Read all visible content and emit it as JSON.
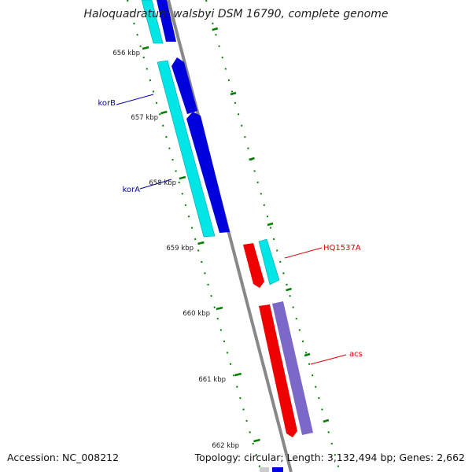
{
  "title": "Haloquadratum walsbyi DSM 16790, complete genome",
  "footer": {
    "accession": "Accession: NC_008212",
    "summary": "Topology: circular; Length: 3,132,494 bp; Genes: 2,662"
  },
  "scale": {
    "ticks": [
      {
        "label": "656 kbp",
        "kbp": 656
      },
      {
        "label": "657 kbp",
        "kbp": 657
      },
      {
        "label": "658 kbp",
        "kbp": 658
      },
      {
        "label": "659 kbp",
        "kbp": 659
      },
      {
        "label": "660 kbp",
        "kbp": 660
      },
      {
        "label": "661 kbp",
        "kbp": 661
      },
      {
        "label": "662 kbp",
        "kbp": 662
      }
    ]
  },
  "genes": [
    {
      "label": "korB",
      "label_color": "#0000aa"
    },
    {
      "label": "korA",
      "label_color": "#0000aa"
    },
    {
      "label": "HQ1537A",
      "label_color": "#dd0000"
    },
    {
      "label": "acs",
      "label_color": "#dd0000"
    }
  ],
  "colors": {
    "backbone": "#888888",
    "tick_green": "#008000",
    "cds_blue": "#0000dd",
    "cds_cyan": "#00e5e5",
    "cds_red": "#ee0000",
    "cds_purple": "#7b68c8"
  }
}
